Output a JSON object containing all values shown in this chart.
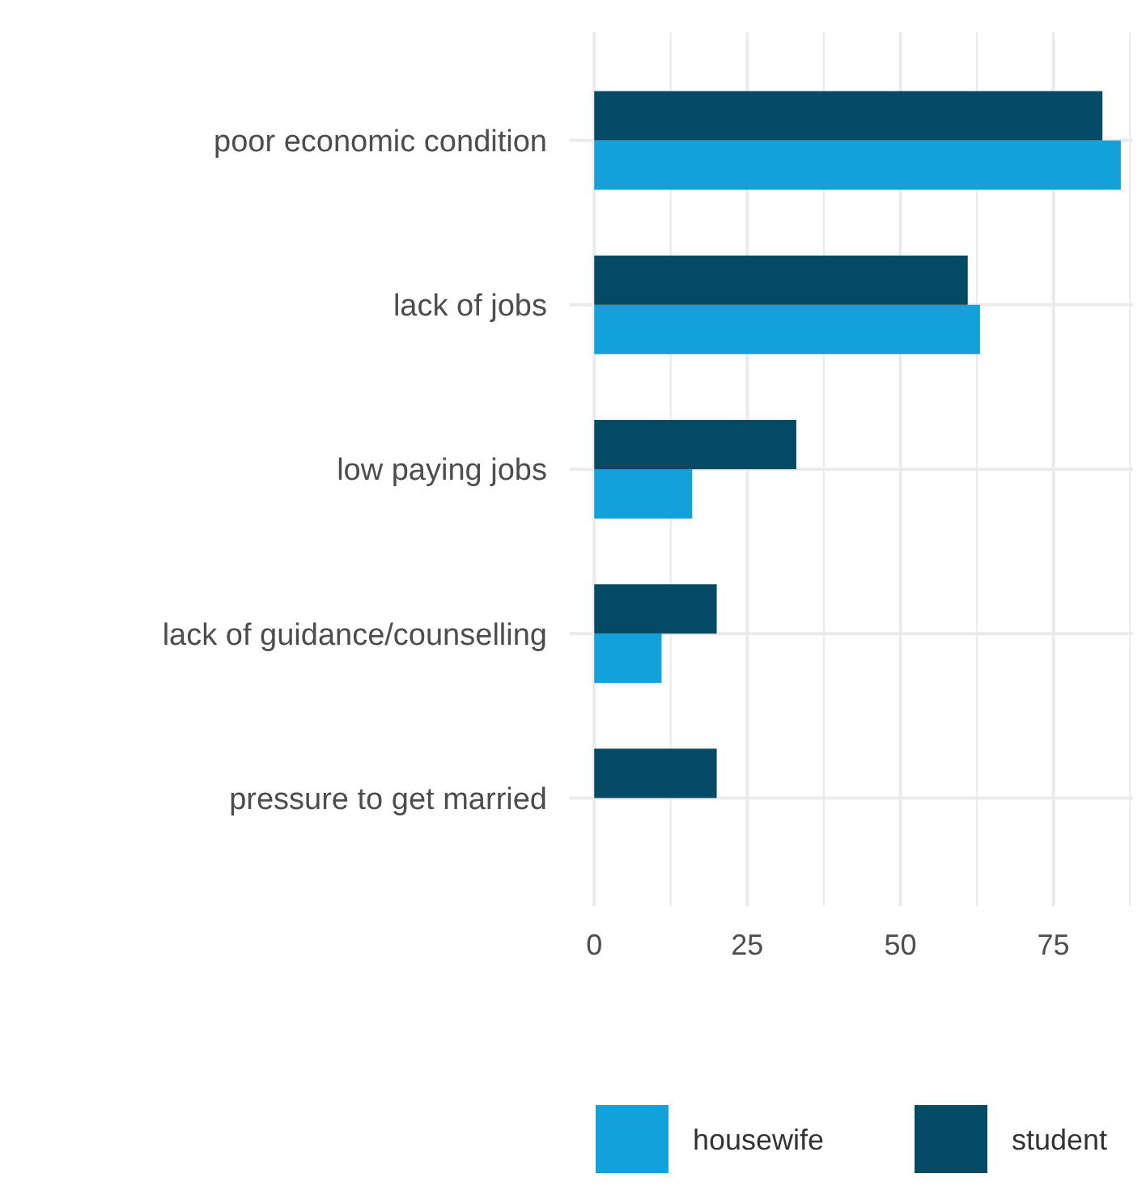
{
  "chart_data": {
    "type": "bar",
    "orientation": "horizontal",
    "categories": [
      "poor economic condition",
      "lack of jobs",
      "low paying jobs",
      "lack of guidance/counselling",
      "pressure to get married"
    ],
    "series": [
      {
        "name": "housewife",
        "color": "#12a1d9",
        "values": [
          86,
          63,
          16,
          11,
          null
        ]
      },
      {
        "name": "student",
        "color": "#034b64",
        "values": [
          83,
          61,
          33,
          20,
          20
        ]
      }
    ],
    "xlim": [
      -4,
      88
    ],
    "xticks": [
      0,
      {
        "value": 12.5,
        "label": null
      },
      25,
      {
        "value": 37.5,
        "label": null
      },
      50,
      {
        "value": 62.5,
        "label": null
      },
      75,
      {
        "value": 87.5,
        "label": null
      }
    ],
    "grid": true,
    "legend": "bottom"
  }
}
